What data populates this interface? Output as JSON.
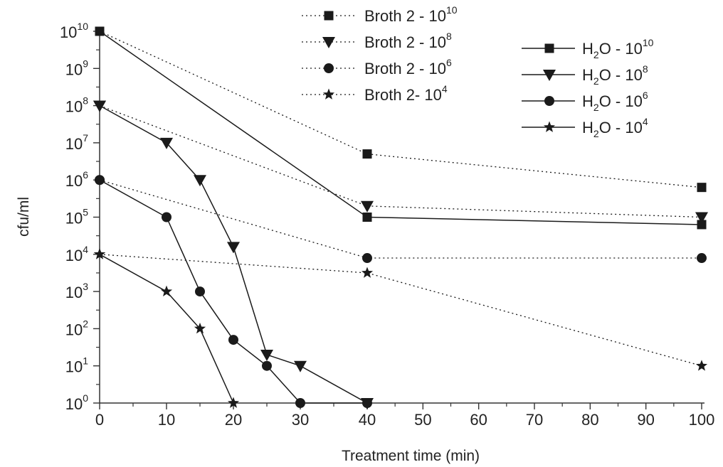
{
  "chart_data": {
    "type": "line",
    "title": "",
    "xlabel": "Treatment time (min)",
    "ylabel": "cfu/ml",
    "xlim": [
      0,
      100
    ],
    "ylim_exponent": [
      0,
      10
    ],
    "y_scale": "log10",
    "x_axis_note": "axis break between 40 and 100; 40 placed at 4/9 and 100 at right end",
    "x_ticks": [
      {
        "value": 0,
        "label": "0"
      },
      {
        "value": 10,
        "label": "10"
      },
      {
        "value": 20,
        "label": "20"
      },
      {
        "value": 30,
        "label": "30"
      },
      {
        "value": 40,
        "label": "40"
      },
      {
        "value": 50,
        "label": "50"
      },
      {
        "value": 60,
        "label": "60"
      },
      {
        "value": 70,
        "label": "70"
      },
      {
        "value": 80,
        "label": "80"
      },
      {
        "value": 90,
        "label": "90"
      },
      {
        "value": 100,
        "label": "100"
      }
    ],
    "y_ticks": [
      {
        "exp": 0,
        "base": "10",
        "sup": "0"
      },
      {
        "exp": 1,
        "base": "10",
        "sup": "1"
      },
      {
        "exp": 2,
        "base": "10",
        "sup": "2"
      },
      {
        "exp": 3,
        "base": "10",
        "sup": "3"
      },
      {
        "exp": 4,
        "base": "10",
        "sup": "4"
      },
      {
        "exp": 5,
        "base": "10",
        "sup": "5"
      },
      {
        "exp": 6,
        "base": "10",
        "sup": "6"
      },
      {
        "exp": 7,
        "base": "10",
        "sup": "7"
      },
      {
        "exp": 8,
        "base": "10",
        "sup": "8"
      },
      {
        "exp": 9,
        "base": "10",
        "sup": "9"
      },
      {
        "exp": 10,
        "base": "10",
        "sup": "10"
      }
    ],
    "series": [
      {
        "name": "Broth 2 - 10^10",
        "label_main": "Broth 2 - 10",
        "label_sup": "10",
        "group": "broth",
        "marker": "square",
        "line": "dotted",
        "points": [
          {
            "x": 0,
            "y_exp": 10
          },
          {
            "x": 40,
            "y_exp": 6.7
          },
          {
            "x": 100,
            "y_exp": 5.8
          }
        ]
      },
      {
        "name": "Broth 2 - 10^8",
        "label_main": "Broth 2 - 10",
        "label_sup": "8",
        "group": "broth",
        "marker": "triangle-down",
        "line": "dotted",
        "points": [
          {
            "x": 0,
            "y_exp": 8
          },
          {
            "x": 40,
            "y_exp": 5.3
          },
          {
            "x": 100,
            "y_exp": 5
          }
        ]
      },
      {
        "name": "Broth 2 - 10^6",
        "label_main": "Broth 2 - 10",
        "label_sup": "6",
        "group": "broth",
        "marker": "circle",
        "line": "dotted",
        "points": [
          {
            "x": 0,
            "y_exp": 6
          },
          {
            "x": 40,
            "y_exp": 3.9
          },
          {
            "x": 100,
            "y_exp": 3.9
          }
        ]
      },
      {
        "name": "Broth 2- 10^4",
        "label_main": "Broth 2- 10",
        "label_sup": "4",
        "group": "broth",
        "marker": "star",
        "line": "dotted",
        "points": [
          {
            "x": 0,
            "y_exp": 4
          },
          {
            "x": 40,
            "y_exp": 3.5
          },
          {
            "x": 100,
            "y_exp": 1
          }
        ]
      },
      {
        "name": "H2O - 10^10",
        "label_pre": "H",
        "label_sub": "2",
        "label_main": "O - 10",
        "label_sup": "10",
        "group": "water",
        "marker": "square",
        "line": "solid",
        "points": [
          {
            "x": 0,
            "y_exp": 10
          },
          {
            "x": 40,
            "y_exp": 5
          },
          {
            "x": 100,
            "y_exp": 4.8
          }
        ]
      },
      {
        "name": "H2O - 10^8",
        "label_pre": "H",
        "label_sub": "2",
        "label_main": "O - 10",
        "label_sup": "8",
        "group": "water",
        "marker": "triangle-down",
        "line": "solid",
        "points": [
          {
            "x": 0,
            "y_exp": 8
          },
          {
            "x": 10,
            "y_exp": 7
          },
          {
            "x": 15,
            "y_exp": 6
          },
          {
            "x": 20,
            "y_exp": 4.2
          },
          {
            "x": 25,
            "y_exp": 1.3
          },
          {
            "x": 30,
            "y_exp": 1
          },
          {
            "x": 40,
            "y_exp": 0
          }
        ]
      },
      {
        "name": "H2O - 10^6",
        "label_pre": "H",
        "label_sub": "2",
        "label_main": "O - 10",
        "label_sup": "6",
        "group": "water",
        "marker": "circle",
        "line": "solid",
        "points": [
          {
            "x": 0,
            "y_exp": 6
          },
          {
            "x": 10,
            "y_exp": 5
          },
          {
            "x": 15,
            "y_exp": 3
          },
          {
            "x": 20,
            "y_exp": 1.7
          },
          {
            "x": 25,
            "y_exp": 1
          },
          {
            "x": 30,
            "y_exp": 0
          },
          {
            "x": 40,
            "y_exp": 0
          }
        ]
      },
      {
        "name": "H2O - 10^4",
        "label_pre": "H",
        "label_sub": "2",
        "label_main": "O - 10",
        "label_sup": "4",
        "group": "water",
        "marker": "star",
        "line": "solid",
        "points": [
          {
            "x": 0,
            "y_exp": 4
          },
          {
            "x": 10,
            "y_exp": 3
          },
          {
            "x": 15,
            "y_exp": 2
          },
          {
            "x": 20,
            "y_exp": 0
          }
        ]
      }
    ],
    "legend_placement": "top (two columns: broth left-center, water right)",
    "grid": false,
    "colors": {
      "line": "#1a1a1a",
      "background": "#ffffff"
    }
  }
}
